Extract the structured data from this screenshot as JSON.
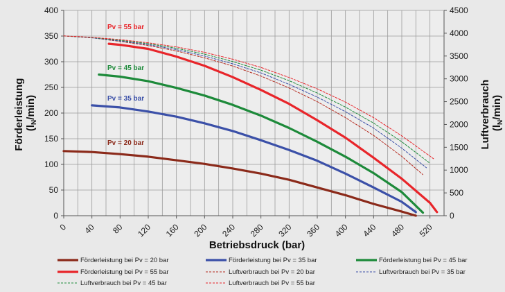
{
  "chart_data": {
    "type": "line",
    "xlabel": "Betriebsdruck (bar)",
    "ylabel_left": "Förderleistung (lN/min)",
    "ylabel_left_parts": {
      "line1": "Förderleistung",
      "line2_pre": "(l",
      "line2_sub": "N",
      "line2_post": "/min)"
    },
    "ylabel_right": "Luftverbrauch (lN/min)",
    "ylabel_right_parts": {
      "line1": "Luftverbrauch",
      "line2_pre": "(l",
      "line2_sub": "N",
      "line2_post": "/min)"
    },
    "xlim": [
      0,
      540
    ],
    "ylim_left": [
      0,
      400
    ],
    "ylim_right": [
      0,
      4500
    ],
    "x_ticks": [
      0,
      40,
      80,
      120,
      160,
      200,
      240,
      280,
      320,
      360,
      400,
      440,
      480,
      520
    ],
    "y_ticks_left": [
      0,
      50,
      100,
      150,
      200,
      250,
      300,
      350,
      400
    ],
    "y_ticks_right": [
      0,
      500,
      1000,
      1500,
      2000,
      2500,
      3000,
      3500,
      4000,
      4500
    ],
    "grid": true,
    "legend_position": "bottom",
    "annotations": [
      {
        "text": "Pv = 55 bar",
        "color": "#e8252a"
      },
      {
        "text": "Pv = 45 bar",
        "color": "#1d8a3a"
      },
      {
        "text": "Pv = 35 bar",
        "color": "#3b50a8"
      },
      {
        "text": "Pv = 20 bar",
        "color": "#8b2a1a"
      }
    ],
    "series": [
      {
        "name": "Förderleistung bei Pv = 20 bar",
        "axis": "left",
        "style": "solid",
        "color": "#8b2a1a",
        "x": [
          0,
          40,
          80,
          120,
          160,
          200,
          240,
          280,
          320,
          360,
          400,
          440,
          480,
          500
        ],
        "y": [
          126,
          124,
          120,
          115,
          108,
          101,
          92,
          82,
          70,
          55,
          40,
          23,
          8,
          0
        ]
      },
      {
        "name": "Förderleistung bei Pv = 35 bar",
        "axis": "left",
        "style": "solid",
        "color": "#3b50a8",
        "x": [
          40,
          80,
          120,
          160,
          200,
          240,
          280,
          320,
          360,
          400,
          440,
          480,
          500
        ],
        "y": [
          215,
          211,
          203,
          193,
          180,
          165,
          147,
          128,
          107,
          82,
          55,
          27,
          7
        ]
      },
      {
        "name": "Förderleistung bei Pv = 45 bar",
        "axis": "left",
        "style": "solid",
        "color": "#1d8a3a",
        "x": [
          50,
          80,
          120,
          160,
          200,
          240,
          280,
          320,
          360,
          400,
          440,
          480,
          510
        ],
        "y": [
          275,
          271,
          262,
          249,
          234,
          216,
          195,
          171,
          144,
          115,
          83,
          46,
          6
        ]
      },
      {
        "name": "Förderleistung bei Pv = 55 bar",
        "axis": "left",
        "style": "solid",
        "color": "#e8252a",
        "x": [
          64,
          80,
          120,
          160,
          200,
          240,
          280,
          320,
          360,
          400,
          440,
          480,
          520,
          530
        ],
        "y": [
          335,
          333,
          325,
          310,
          292,
          270,
          245,
          218,
          186,
          152,
          113,
          72,
          25,
          7
        ]
      },
      {
        "name": "Luftverbrauch bei Pv = 20 bar",
        "axis": "right",
        "style": "dashed",
        "color": "#b52a1f",
        "x": [
          0,
          40,
          80,
          120,
          160,
          200,
          240,
          280,
          320,
          360,
          400,
          440,
          480,
          510
        ],
        "y": [
          3940,
          3900,
          3820,
          3730,
          3610,
          3460,
          3280,
          3060,
          2800,
          2500,
          2150,
          1760,
          1300,
          900
        ]
      },
      {
        "name": "Luftverbrauch bei Pv = 35 bar",
        "axis": "right",
        "style": "dashed",
        "color": "#3b50a8",
        "x": [
          0,
          40,
          80,
          120,
          160,
          200,
          240,
          280,
          320,
          360,
          400,
          440,
          480,
          515
        ],
        "y": [
          3940,
          3900,
          3830,
          3750,
          3640,
          3500,
          3330,
          3130,
          2880,
          2600,
          2280,
          1920,
          1480,
          1050
        ]
      },
      {
        "name": "Luftverbrauch bei Pv = 45 bar",
        "axis": "right",
        "style": "dashed",
        "color": "#1d8a3a",
        "x": [
          0,
          40,
          80,
          120,
          160,
          200,
          240,
          280,
          320,
          360,
          400,
          440,
          480,
          520
        ],
        "y": [
          3940,
          3905,
          3845,
          3770,
          3670,
          3540,
          3380,
          3190,
          2960,
          2690,
          2380,
          2030,
          1620,
          1150
        ]
      },
      {
        "name": "Luftverbrauch bei Pv = 55 bar",
        "axis": "right",
        "style": "dashed",
        "color": "#e8252a",
        "x": [
          0,
          40,
          80,
          120,
          160,
          200,
          240,
          280,
          320,
          360,
          400,
          440,
          480,
          525
        ],
        "y": [
          3940,
          3910,
          3860,
          3790,
          3700,
          3580,
          3430,
          3250,
          3030,
          2780,
          2490,
          2150,
          1750,
          1250
        ]
      }
    ]
  }
}
